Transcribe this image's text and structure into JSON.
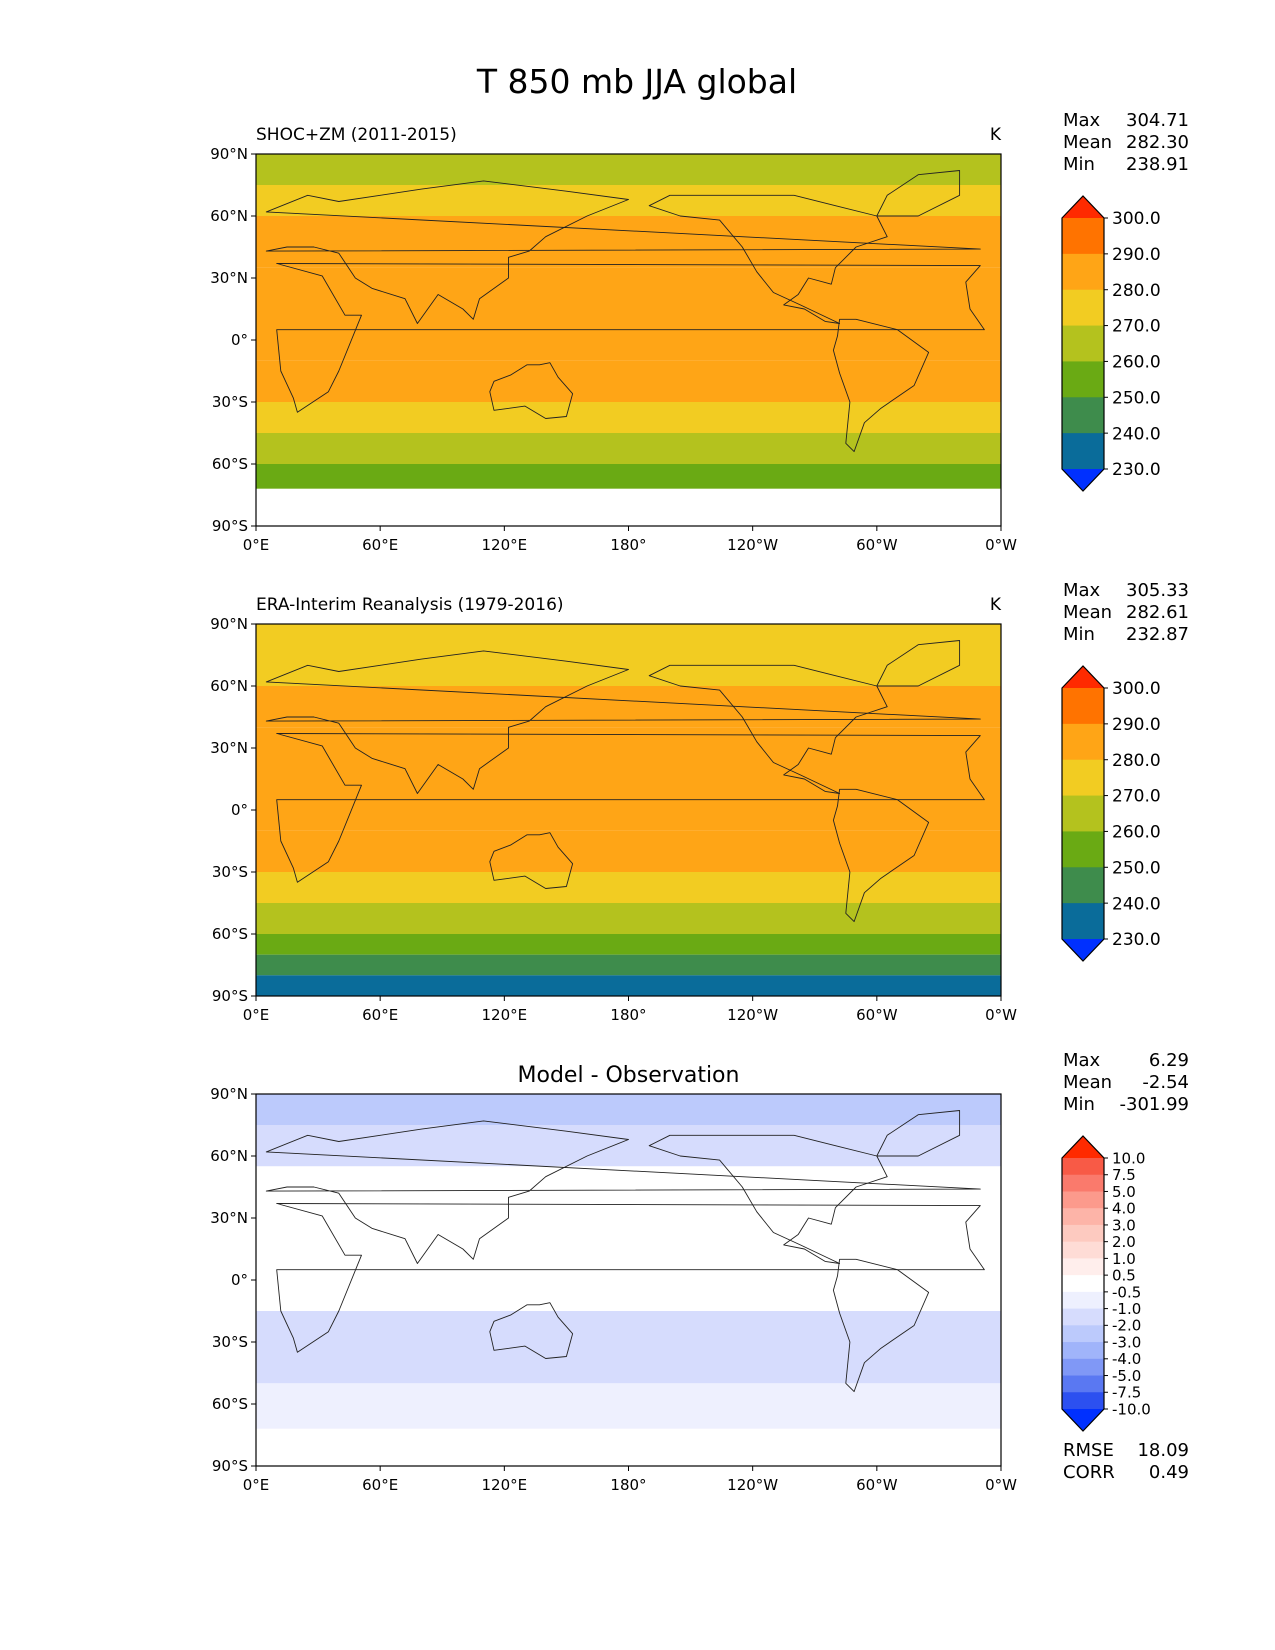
{
  "title": "T 850 mb JJA global",
  "lat_ticks": [
    "90°N",
    "60°N",
    "30°N",
    "0°",
    "30°S",
    "60°S",
    "90°S"
  ],
  "lon_ticks": [
    "0°E",
    "60°E",
    "120°E",
    "180°",
    "120°W",
    "60°W",
    "0°W"
  ],
  "stat_labels": {
    "max": "Max",
    "mean": "Mean",
    "min": "Min",
    "rmse": "RMSE",
    "corr": "CORR"
  },
  "chart_data": [
    {
      "type": "heatmap",
      "panel": "model",
      "title_left": "SHOC+ZM (2011-2015)",
      "units": "K",
      "stats": {
        "max": "304.71",
        "mean": "282.30",
        "min": "238.91"
      },
      "colorbar_labels": [
        "300.0",
        "290.0",
        "280.0",
        "270.0",
        "260.0",
        "250.0",
        "240.0",
        "230.0"
      ],
      "colorbar_colors": [
        "#ff2a00",
        "#ff7300",
        "#ffa516",
        "#f2cc22",
        "#b4c21e",
        "#6aaa14",
        "#3e8c4c",
        "#0a6c9a",
        "#0030ff"
      ],
      "field_bands": [
        {
          "lat_min": 75,
          "lat_max": 90,
          "value": 260
        },
        {
          "lat_min": 60,
          "lat_max": 75,
          "value": 270
        },
        {
          "lat_min": 35,
          "lat_max": 60,
          "value": 280
        },
        {
          "lat_min": -10,
          "lat_max": 35,
          "value": 285
        },
        {
          "lat_min": -30,
          "lat_max": -10,
          "value": 280
        },
        {
          "lat_min": -45,
          "lat_max": -30,
          "value": 270
        },
        {
          "lat_min": -60,
          "lat_max": -45,
          "value": 260
        },
        {
          "lat_min": -72,
          "lat_max": -60,
          "value": 250
        },
        {
          "lat_min": -90,
          "lat_max": -72,
          "value": "masked"
        }
      ]
    },
    {
      "type": "heatmap",
      "panel": "observation",
      "title_left": "ERA-Interim Reanalysis (1979-2016)",
      "units": "K",
      "stats": {
        "max": "305.33",
        "mean": "282.61",
        "min": "232.87"
      },
      "colorbar_labels": [
        "300.0",
        "290.0",
        "280.0",
        "270.0",
        "260.0",
        "250.0",
        "240.0",
        "230.0"
      ],
      "colorbar_colors": [
        "#ff2a00",
        "#ff7300",
        "#ffa516",
        "#f2cc22",
        "#b4c21e",
        "#6aaa14",
        "#3e8c4c",
        "#0a6c9a",
        "#0030ff"
      ],
      "field_bands": [
        {
          "lat_min": 60,
          "lat_max": 90,
          "value": 270
        },
        {
          "lat_min": 40,
          "lat_max": 60,
          "value": 280
        },
        {
          "lat_min": -10,
          "lat_max": 40,
          "value": 285
        },
        {
          "lat_min": -30,
          "lat_max": -10,
          "value": 280
        },
        {
          "lat_min": -45,
          "lat_max": -30,
          "value": 270
        },
        {
          "lat_min": -60,
          "lat_max": -45,
          "value": 260
        },
        {
          "lat_min": -70,
          "lat_max": -60,
          "value": 250
        },
        {
          "lat_min": -80,
          "lat_max": -70,
          "value": 240
        },
        {
          "lat_min": -90,
          "lat_max": -80,
          "value": 230
        }
      ]
    },
    {
      "type": "heatmap",
      "panel": "difference",
      "title_center": "Model - Observation",
      "stats": {
        "max": "6.29",
        "mean": "-2.54",
        "min": "-301.99"
      },
      "rmse": "18.09",
      "corr": "0.49",
      "colorbar_labels": [
        "10.0",
        "7.5",
        "5.0",
        "4.0",
        "3.0",
        "2.0",
        "1.0",
        "0.5",
        "-0.5",
        "-1.0",
        "-2.0",
        "-3.0",
        "-4.0",
        "-5.0",
        "-7.5",
        "-10.0"
      ],
      "colorbar_colors": [
        "#ff2a00",
        "#f85a46",
        "#fa7a6c",
        "#fc9a8c",
        "#fdb4a8",
        "#fdcac0",
        "#fedcd6",
        "#ffeeec",
        "#ffffff",
        "#eef0fe",
        "#d6dcfd",
        "#bccafc",
        "#a0b4fa",
        "#8098f6",
        "#5a78f2",
        "#2c50f0",
        "#0030ff"
      ],
      "field_bands": [
        {
          "lat_min": 75,
          "lat_max": 90,
          "value": -3
        },
        {
          "lat_min": 55,
          "lat_max": 75,
          "value": -2
        },
        {
          "lat_min": -15,
          "lat_max": 55,
          "value": -0.5
        },
        {
          "lat_min": -50,
          "lat_max": -15,
          "value": -2
        },
        {
          "lat_min": -72,
          "lat_max": -50,
          "value": -1
        },
        {
          "lat_min": -90,
          "lat_max": -72,
          "value": "masked"
        }
      ]
    }
  ]
}
